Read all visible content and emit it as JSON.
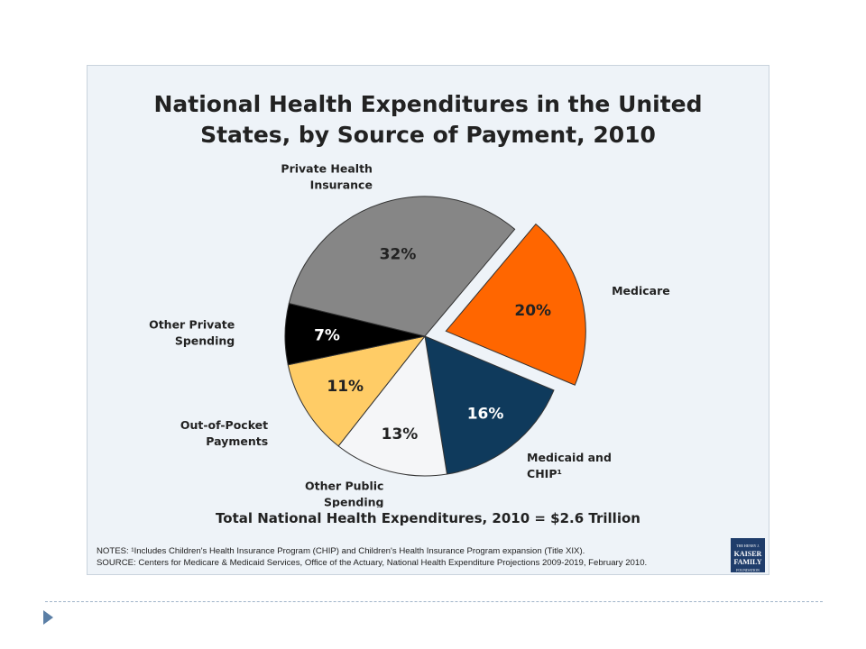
{
  "chart_data": {
    "type": "pie",
    "title_lines": [
      "National Health Expenditures in the United",
      "States, by Source of Payment, 2010"
    ],
    "slices": [
      {
        "name": "Medicare",
        "name_lines": [
          "Medicare"
        ],
        "value": 20,
        "label": "20%",
        "color": "#ff6600",
        "exploded": true,
        "label_color": "#222222"
      },
      {
        "name": "Medicaid and CHIP¹",
        "name_lines": [
          "Medicaid and",
          "CHIP¹"
        ],
        "value": 16,
        "label": "16%",
        "color": "#0f3a5c",
        "exploded": false,
        "label_color": "#ffffff"
      },
      {
        "name": "Other Public Spending",
        "name_lines": [
          "Other Public",
          "Spending"
        ],
        "value": 13,
        "label": "13%",
        "color": "#f5f6f8",
        "exploded": false,
        "label_color": "#222222"
      },
      {
        "name": "Out-of-Pocket Payments",
        "name_lines": [
          "Out-of-Pocket",
          "Payments"
        ],
        "value": 11,
        "label": "11%",
        "color": "#ffcc66",
        "exploded": false,
        "label_color": "#222222"
      },
      {
        "name": "Other Private Spending",
        "name_lines": [
          "Other Private",
          "Spending"
        ],
        "value": 7,
        "label": "7%",
        "color": "#000000",
        "exploded": false,
        "label_color": "#ffffff"
      },
      {
        "name": "Private Health Insurance",
        "name_lines": [
          "Private Health",
          "Insurance"
        ],
        "value": 32,
        "label": "32%",
        "color": "#868686",
        "exploded": false,
        "label_color": "#222222"
      }
    ],
    "total_text": "Total National Health Expenditures, 2010 = $2.6 Trillion"
  },
  "notes": {
    "line1": "NOTES: ¹Includes Children's Health Insurance Program (CHIP) and Children's Health Insurance Program  expansion (Title XIX).",
    "line2": "SOURCE: Centers for Medicare & Medicaid Services, Office of the Actuary, National Health Expenditure Projections 2009-2019, February 2010."
  },
  "logo": {
    "line1": "THE HENRY J.",
    "line2": "KAISER",
    "line3": "FAMILY",
    "line4": "FOUNDATION"
  }
}
